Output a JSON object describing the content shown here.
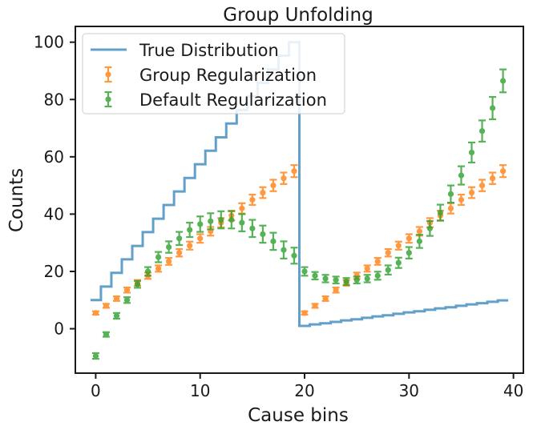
{
  "chart_data": {
    "type": "line",
    "title": "Group Unfolding",
    "xlabel": "Cause bins",
    "ylabel": "Counts",
    "xlim": [
      -1.95,
      40.95
    ],
    "ylim": [
      -15.5,
      105.5
    ],
    "xticks": [
      0,
      10,
      20,
      30,
      40
    ],
    "yticks": [
      0,
      20,
      40,
      60,
      80,
      100
    ],
    "grid": false,
    "legend_position": "top-left",
    "series": [
      {
        "name": "True Distribution",
        "kind": "step",
        "color": "#1f77b4",
        "x": [
          0,
          1,
          2,
          3,
          4,
          5,
          6,
          7,
          8,
          9,
          10,
          11,
          12,
          13,
          14,
          15,
          16,
          17,
          18,
          19,
          20,
          21,
          22,
          23,
          24,
          25,
          26,
          27,
          28,
          29,
          30,
          31,
          32,
          33,
          34,
          35,
          36,
          37,
          38,
          39
        ],
        "values": [
          10,
          14.7,
          19.5,
          24.2,
          28.9,
          33.7,
          38.4,
          43.2,
          47.9,
          52.6,
          57.4,
          62.1,
          66.8,
          71.6,
          76.3,
          81.1,
          85.8,
          90.5,
          95.3,
          100,
          1,
          1.5,
          1.9,
          2.4,
          2.9,
          3.3,
          3.8,
          4.3,
          4.7,
          5.2,
          5.7,
          6.1,
          6.6,
          7.1,
          7.5,
          8.0,
          8.5,
          8.9,
          9.4,
          9.9
        ]
      },
      {
        "name": "Group Regularization",
        "kind": "errorbar",
        "color": "#ff7f0e",
        "x": [
          0,
          1,
          2,
          3,
          4,
          5,
          6,
          7,
          8,
          9,
          10,
          11,
          12,
          13,
          14,
          15,
          16,
          17,
          18,
          19,
          20,
          21,
          22,
          23,
          24,
          25,
          26,
          27,
          28,
          29,
          30,
          31,
          32,
          33,
          34,
          35,
          36,
          37,
          38,
          39
        ],
        "values": [
          5.5,
          8,
          10.5,
          13.5,
          16,
          18.5,
          21,
          23.5,
          26.5,
          29,
          31.5,
          34,
          37,
          39.5,
          42,
          45,
          47.5,
          50,
          52.5,
          55,
          5.5,
          8,
          10.5,
          13.5,
          16,
          18.5,
          21,
          23.5,
          26.5,
          29,
          31.5,
          34,
          37,
          39.5,
          42,
          45,
          47.5,
          50,
          52.5,
          55
        ],
        "errors": [
          0.6,
          0.7,
          0.8,
          0.9,
          1.0,
          1.1,
          1.1,
          1.2,
          1.3,
          1.4,
          1.5,
          1.5,
          1.6,
          1.7,
          1.8,
          1.8,
          1.9,
          2.0,
          2.0,
          2.1,
          0.6,
          0.7,
          0.8,
          0.9,
          1.0,
          1.1,
          1.1,
          1.2,
          1.3,
          1.4,
          1.5,
          1.5,
          1.6,
          1.7,
          1.8,
          1.8,
          1.9,
          2.0,
          2.0,
          2.1
        ]
      },
      {
        "name": "Default Regularization",
        "kind": "errorbar",
        "color": "#2ca02c",
        "x": [
          0,
          1,
          2,
          3,
          4,
          5,
          6,
          7,
          8,
          9,
          10,
          11,
          12,
          13,
          14,
          15,
          16,
          17,
          18,
          19,
          20,
          21,
          22,
          23,
          24,
          25,
          26,
          27,
          28,
          29,
          30,
          31,
          32,
          33,
          34,
          35,
          36,
          37,
          38,
          39
        ],
        "values": [
          -9.5,
          -2,
          4.5,
          10,
          15.5,
          20,
          25,
          28.5,
          31.5,
          34.5,
          36.5,
          37.5,
          38,
          38,
          37,
          35,
          33,
          30.5,
          27.5,
          25.5,
          20,
          18.5,
          17.5,
          17,
          16.5,
          17,
          17.5,
          18.5,
          20.5,
          23,
          26.5,
          30.5,
          35,
          40.5,
          47,
          53.5,
          61.5,
          69,
          77,
          86.5
        ],
        "errors": [
          1,
          0.8,
          1,
          1,
          1.2,
          1.5,
          1.8,
          2,
          2.3,
          2.5,
          2.7,
          2.8,
          3,
          3,
          3,
          3,
          3,
          3,
          3,
          2.8,
          1.5,
          1.3,
          1.3,
          1.2,
          1.2,
          1.2,
          1.3,
          1.4,
          1.6,
          1.8,
          2,
          2.3,
          2.6,
          2.8,
          3,
          3.2,
          3.5,
          3.7,
          3.9,
          4
        ]
      }
    ]
  }
}
